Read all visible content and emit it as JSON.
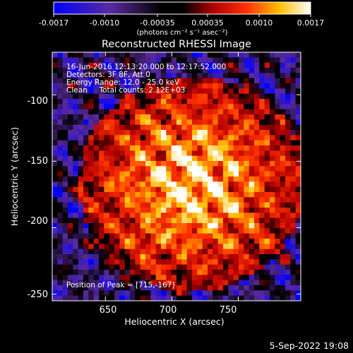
{
  "colorbar": {
    "ticks": [
      "-0.0017",
      "-0.0010",
      "-0.00035",
      "0.00035",
      "0.0010",
      "0.0017"
    ],
    "units": "(photons cm⁻² s⁻¹ asec⁻²)"
  },
  "chart_data": {
    "type": "heatmap",
    "title": "Reconstructed RHESSI Image",
    "xlabel": "Heliocentric X (arcsec)",
    "ylabel": "Heliocentric Y (arcsec)",
    "xlim": [
      610,
      797
    ],
    "ylim": [
      -255,
      -68
    ],
    "color_range": [
      -0.0017,
      0.0017
    ],
    "colormap": "blue-purple-black-red-orange-yellow-white",
    "x_ticks": [
      "650",
      "700",
      "750"
    ],
    "y_ticks": [
      "-100",
      "-150",
      "-200",
      "-250"
    ],
    "x_tick_values": [
      650,
      700,
      750
    ],
    "y_tick_values": [
      -100,
      -150,
      -200,
      -250
    ],
    "peak": [
      715,
      -167
    ],
    "annotations": [
      "16-Jun-2016 12:13:20.000 to 12:17:52.000",
      "Detectors: 3F 8F, Att 0",
      "Energy Range: 12.0 - 25.0 keV",
      "Clean     Total counts: 2.12E+03"
    ],
    "peak_label": "Position of Peak = [715,-167]",
    "grid": false
  },
  "footer": {
    "timestamp": "5-Sep-2022 19:08"
  }
}
